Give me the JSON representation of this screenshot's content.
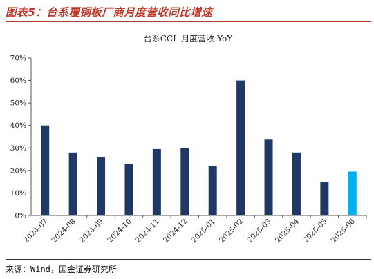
{
  "header": {
    "figure_title": "图表5：台系覆铜板厂商月度营收同比增速"
  },
  "footer": {
    "source": "来源：Wind，国金证券研究所"
  },
  "chart_data": {
    "type": "bar",
    "title": "台系CCL-月度营收-YoY",
    "xlabel": "",
    "ylabel": "",
    "categories": [
      "2024-07",
      "2024-08",
      "2024-09",
      "2024-10",
      "2024-11",
      "2024-12",
      "2025-01",
      "2025-02",
      "2025-03",
      "2025-04",
      "2025-05",
      "2025-06"
    ],
    "series": [
      {
        "values": [
          40,
          28,
          26,
          23,
          29.5,
          29.8,
          22,
          60,
          34,
          28,
          15,
          19.5
        ]
      }
    ],
    "ylim": [
      0,
      70
    ],
    "yticks": [
      0,
      10,
      20,
      30,
      40,
      50,
      60,
      70
    ],
    "ytick_labels": [
      "0%",
      "10%",
      "20%",
      "30%",
      "40%",
      "50%",
      "60%",
      "70%"
    ],
    "grid": false,
    "legend": "none",
    "colors": {
      "bar": "#1f3864",
      "highlight_bar": "#00b0f0",
      "highlight_category": "2025-06"
    }
  }
}
